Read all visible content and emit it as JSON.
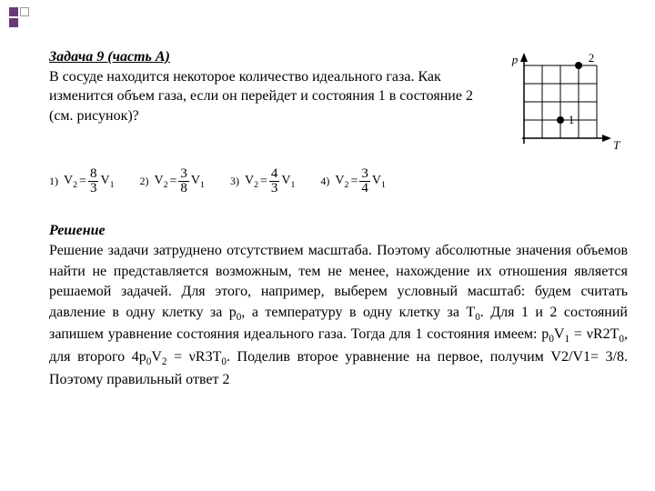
{
  "decor": {
    "square_color": "#6b3b77",
    "outline_color": "#999999"
  },
  "problem": {
    "title": "Задача 9 (часть А)",
    "body": "В сосуде находится некоторое количество идеального газа. Как изменится объем газа, если он перейдет и состояния 1 в состояние 2 (см. рисунок)?"
  },
  "chart": {
    "p_label": "p",
    "t_label": "T",
    "point1_label": "1",
    "point2_label": "2",
    "grid_cells": 4,
    "axis_color": "#000000",
    "grid_color": "#000000",
    "point1": {
      "gx": 2,
      "gy": 1
    },
    "point2": {
      "gx": 3,
      "gy": 4
    }
  },
  "answers": {
    "opt1": {
      "num": "1)",
      "lhs": "V",
      "lhs_sub": "2",
      "frac_n": "8",
      "frac_d": "3",
      "rhs": "V",
      "rhs_sub": "1"
    },
    "opt2": {
      "num": "2)",
      "lhs": "V",
      "lhs_sub": "2",
      "frac_n": "3",
      "frac_d": "8",
      "rhs": "V",
      "rhs_sub": "1"
    },
    "opt3": {
      "num": "3)",
      "lhs": "V",
      "lhs_sub": "2",
      "frac_n": "4",
      "frac_d": "3",
      "rhs": "V",
      "rhs_sub": "1"
    },
    "opt4": {
      "num": "4)",
      "lhs": "V",
      "lhs_sub": "2",
      "frac_n": "3",
      "frac_d": "4",
      "rhs": "V",
      "rhs_sub": "1"
    }
  },
  "solution": {
    "title": "Решение",
    "body_html": "Решение задачи затруднено отсутствием масштаба. Поэтому абсолютные значения объемов найти не представляется возможным, тем не менее, нахождение их отношения является решаемой задачей. Для этого, например, выберем условный масштаб: будем считать давление в одну клетку за p<sub>0</sub>, а температуру в одну клетку за T<sub>0</sub>. Для 1 и 2 состояний запишем уравнение состояния идеального газа. Тогда для 1 состояния имеем: p<sub>0</sub>V<sub>1</sub> = νR2T<sub>0</sub>, для второго 4p<sub>0</sub>V<sub>2</sub> = νR3T<sub>0</sub>. Поделив второе уравнение на первое, получим V2/V1= 3/8. Поэтому правильный ответ 2"
  }
}
